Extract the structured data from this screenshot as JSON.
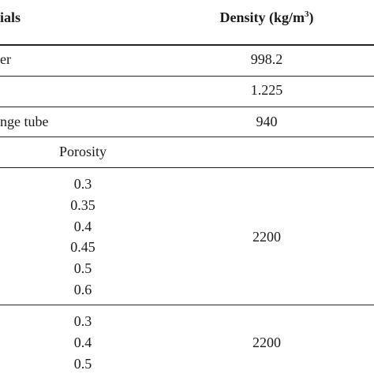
{
  "table": {
    "headers": {
      "materials": "ials",
      "density_prefix": "Density (kg/m",
      "density_exp": "3",
      "density_suffix": ")"
    },
    "rows": {
      "water": {
        "label": "er",
        "density": "998.2"
      },
      "air": {
        "label": "",
        "density": "1.225"
      },
      "sponge": {
        "label": "nge tube",
        "density": "940"
      }
    },
    "porosity_header": "Porosity",
    "group1": {
      "porosities": [
        "0.3",
        "0.35",
        "0.4",
        "0.45",
        "0.5",
        "0.6"
      ],
      "density": "2200"
    },
    "group2": {
      "porosities": [
        "0.3",
        "0.4",
        "0.5"
      ],
      "density": "2200"
    }
  }
}
